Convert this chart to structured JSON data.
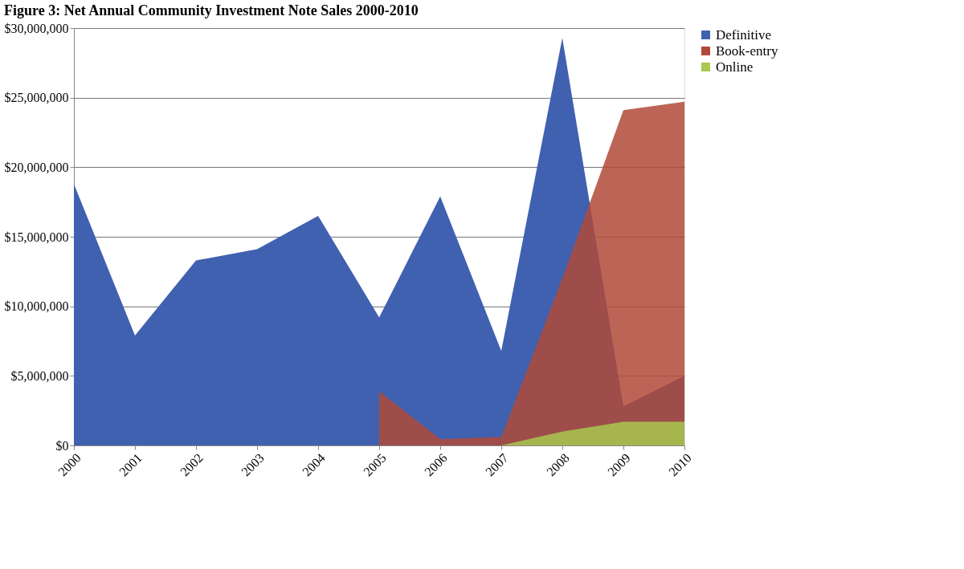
{
  "chart_data": {
    "type": "area",
    "title": "Figure 3: Net Annual Community Investment Note Sales 2000-2010",
    "categories": [
      "2000",
      "2001",
      "2002",
      "2003",
      "2004",
      "2005",
      "2006",
      "2007",
      "2008",
      "2009",
      "2010"
    ],
    "series": [
      {
        "name": "Definitive",
        "color": "#4060b0",
        "values": [
          18800000,
          7900000,
          13300000,
          14100000,
          16500000,
          9200000,
          17900000,
          6800000,
          29300000,
          2800000,
          5000000
        ]
      },
      {
        "name": "Book-entry",
        "color": "#b04a3a",
        "values": [
          null,
          null,
          null,
          null,
          null,
          3900000,
          450000,
          600000,
          12000000,
          24100000,
          24700000
        ]
      },
      {
        "name": "Online",
        "color": "#a8c850",
        "values": [
          null,
          null,
          null,
          null,
          null,
          null,
          null,
          0,
          1000000,
          1700000,
          1700000
        ]
      }
    ],
    "ylim": [
      0,
      30000000
    ],
    "yticks": [
      {
        "value": 0,
        "label": "$0"
      },
      {
        "value": 5000000,
        "label": "$5,000,000"
      },
      {
        "value": 10000000,
        "label": "$10,000,000"
      },
      {
        "value": 15000000,
        "label": "$15,000,000"
      },
      {
        "value": 20000000,
        "label": "$20,000,000"
      },
      {
        "value": 25000000,
        "label": "$25,000,000"
      },
      {
        "value": 30000000,
        "label": "$30,000,000"
      }
    ],
    "grid": "y",
    "legend": "right"
  }
}
